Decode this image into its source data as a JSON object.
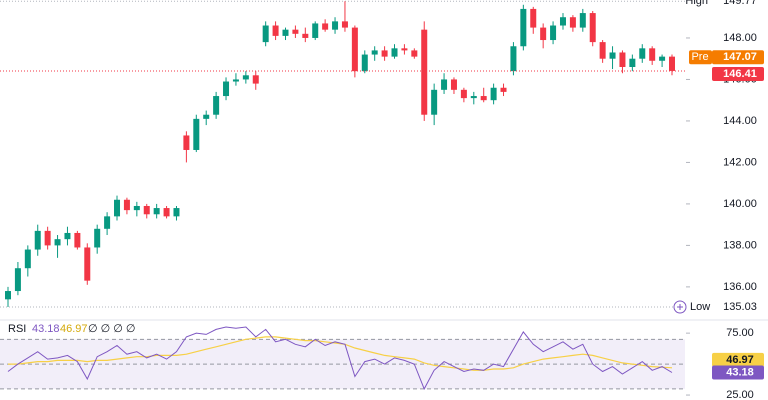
{
  "chart_data": [
    {
      "type": "candlestick",
      "open": [
        135.4,
        135.8,
        136.9,
        137.8,
        138.7,
        138.0,
        138.3,
        138.6,
        137.9,
        137.9,
        138.8,
        139.4,
        140.2,
        139.7,
        139.9,
        139.5,
        139.8,
        139.4,
        143.3,
        142.6,
        144.1,
        144.3,
        145.2,
        145.9,
        146.0,
        146.2,
        147.8,
        148.6,
        148.1,
        148.4,
        148.2,
        148.0,
        148.7,
        148.4,
        148.8,
        148.5,
        146.4,
        147.2,
        147.4,
        147.1,
        147.5,
        147.4,
        148.4,
        144.3,
        145.5,
        146.0,
        145.5,
        145.1,
        145.2,
        145.0,
        145.6,
        146.4,
        147.6,
        149.4,
        148.5,
        147.9,
        148.6,
        149.0,
        148.5,
        149.2,
        147.8,
        147.0,
        147.3,
        146.6,
        147.0,
        147.5,
        146.9,
        147.1
      ],
      "high": [
        136.0,
        137.2,
        138.0,
        139.0,
        138.9,
        138.5,
        138.9,
        138.7,
        138.1,
        139.0,
        139.6,
        140.4,
        140.3,
        140.1,
        140.0,
        140.0,
        139.9,
        139.9,
        143.5,
        144.3,
        144.5,
        145.4,
        146.1,
        146.3,
        146.4,
        146.4,
        148.8,
        148.8,
        148.5,
        148.6,
        148.5,
        148.8,
        148.9,
        149.0,
        149.77,
        148.6,
        147.4,
        147.6,
        147.6,
        147.7,
        147.7,
        147.5,
        148.8,
        145.8,
        146.3,
        146.1,
        145.6,
        145.4,
        145.6,
        145.8,
        145.8,
        147.8,
        149.6,
        149.5,
        148.7,
        148.8,
        149.2,
        149.1,
        149.4,
        149.3,
        147.9,
        147.6,
        147.4,
        147.2,
        147.7,
        147.6,
        147.2,
        147.2
      ],
      "low": [
        135.03,
        135.6,
        136.5,
        137.5,
        137.8,
        137.4,
        138.0,
        137.8,
        136.1,
        137.6,
        138.5,
        139.2,
        139.5,
        139.4,
        139.3,
        139.3,
        139.3,
        139.2,
        142.0,
        142.5,
        143.8,
        144.1,
        145.0,
        145.7,
        145.8,
        145.5,
        147.6,
        147.9,
        147.9,
        148.0,
        147.8,
        147.9,
        148.3,
        148.2,
        148.3,
        146.1,
        146.3,
        146.9,
        146.9,
        147.0,
        147.2,
        147.0,
        144.0,
        143.8,
        145.3,
        145.3,
        144.9,
        144.8,
        144.9,
        144.8,
        145.2,
        146.2,
        147.4,
        148.2,
        147.5,
        147.7,
        148.4,
        148.3,
        148.3,
        147.6,
        146.8,
        146.5,
        146.3,
        146.4,
        146.8,
        146.7,
        146.6,
        146.2
      ],
      "close": [
        135.8,
        136.9,
        137.8,
        138.7,
        138.0,
        138.3,
        138.6,
        137.9,
        136.3,
        138.8,
        139.4,
        140.2,
        139.7,
        139.9,
        139.5,
        139.8,
        139.4,
        139.8,
        142.6,
        144.1,
        144.3,
        145.2,
        145.9,
        146.0,
        146.2,
        145.8,
        148.6,
        148.1,
        148.4,
        148.2,
        148.0,
        148.7,
        148.4,
        148.8,
        148.5,
        146.4,
        147.2,
        147.4,
        147.1,
        147.5,
        147.4,
        147.1,
        144.3,
        145.5,
        146.0,
        145.5,
        145.1,
        145.2,
        145.0,
        145.6,
        145.4,
        147.6,
        149.4,
        148.5,
        147.9,
        148.6,
        149.0,
        148.5,
        149.2,
        147.8,
        147.0,
        147.3,
        146.6,
        147.0,
        147.5,
        146.9,
        147.1,
        146.41
      ],
      "up_color": "#089981",
      "down_color": "#f23645",
      "ylim": [
        134.5,
        149.83
      ],
      "yticks": [
        {
          "value": 136,
          "label": "136.00"
        },
        {
          "value": 138,
          "label": "138.00"
        },
        {
          "value": 140,
          "label": "140.00"
        },
        {
          "value": 142,
          "label": "142.00"
        },
        {
          "value": 144,
          "label": "144.00"
        },
        {
          "value": 146,
          "label": "146.00"
        },
        {
          "value": 148,
          "label": "148.00"
        }
      ],
      "high_marker": {
        "label": "High",
        "value": 149.77
      },
      "low_marker": {
        "label": "Low",
        "value": 135.03
      },
      "pre_market": {
        "label": "Pre",
        "value": 147.07,
        "color": "#f57c00"
      }
    },
    {
      "type": "line",
      "title": "RSI",
      "legend_extra": "∅ ∅ ∅ ∅",
      "series": [
        {
          "color": "#7e57c2",
          "values": [
            44,
            50,
            55,
            60,
            54,
            55,
            57,
            52,
            38,
            56,
            60,
            65,
            58,
            60,
            55,
            58,
            54,
            60,
            72,
            75,
            74,
            78,
            80,
            79,
            80,
            72,
            78,
            68,
            70,
            66,
            64,
            70,
            65,
            68,
            66,
            40,
            52,
            54,
            50,
            55,
            53,
            50,
            30,
            45,
            52,
            48,
            44,
            46,
            45,
            50,
            48,
            62,
            76,
            66,
            60,
            64,
            68,
            62,
            66,
            50,
            44,
            48,
            42,
            47,
            52,
            45,
            48,
            43.18
          ]
        },
        {
          "color": "#f7d046",
          "values": [
            50,
            50,
            51,
            52,
            52,
            53,
            53,
            53,
            52,
            53,
            53,
            54,
            55,
            56,
            56,
            57,
            57,
            57,
            58,
            60,
            62,
            64,
            66,
            68,
            70,
            71,
            72,
            72,
            71,
            70,
            69,
            69,
            68,
            67,
            66,
            63,
            61,
            59,
            57,
            56,
            55,
            54,
            51,
            49,
            48,
            47,
            46,
            45,
            45,
            46,
            46,
            47,
            50,
            52,
            54,
            55,
            56,
            57,
            58,
            57,
            55,
            53,
            51,
            50,
            49,
            48,
            47.5,
            46.97
          ]
        }
      ],
      "ylim": [
        21,
        84
      ],
      "yticks": [
        {
          "value": 75,
          "label": "75.00"
        },
        {
          "value": 25,
          "label": "25.00"
        }
      ],
      "levels": [
        70,
        50,
        30
      ],
      "band_color": "#ede7f6"
    }
  ]
}
